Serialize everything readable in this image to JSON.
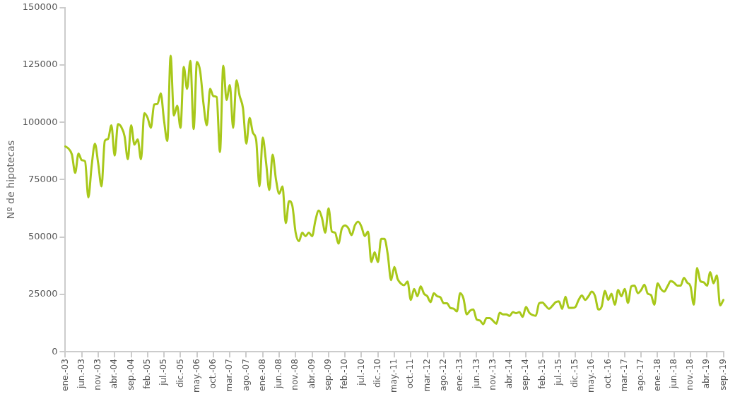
{
  "chart_data": {
    "type": "line",
    "ylabel": "Nº de hipotecas",
    "categories": [
      "ene.-03",
      null,
      null,
      null,
      null,
      "jun.-03",
      null,
      null,
      null,
      null,
      "nov.-03",
      null,
      null,
      null,
      null,
      "abr.-04",
      null,
      null,
      null,
      null,
      "sep.-04",
      null,
      null,
      null,
      null,
      "feb.-05",
      null,
      null,
      null,
      null,
      "jul.-05",
      null,
      null,
      null,
      null,
      "dic.-05",
      null,
      null,
      null,
      null,
      "may.-06",
      null,
      null,
      null,
      null,
      "oct.-06",
      null,
      null,
      null,
      null,
      "mar.-07",
      null,
      null,
      null,
      null,
      "ago.-07",
      null,
      null,
      null,
      null,
      "ene.-08",
      null,
      null,
      null,
      null,
      "jun.-08",
      null,
      null,
      null,
      null,
      "nov.-08",
      null,
      null,
      null,
      null,
      "abr.-09",
      null,
      null,
      null,
      null,
      "sep.-09",
      null,
      null,
      null,
      null,
      "feb.-10",
      null,
      null,
      null,
      null,
      "jul.-10",
      null,
      null,
      null,
      null,
      "dic.-10",
      null,
      null,
      null,
      null,
      "may.-11",
      null,
      null,
      null,
      null,
      "oct.-11",
      null,
      null,
      null,
      null,
      "mar.-12",
      null,
      null,
      null,
      null,
      "ago.-12",
      null,
      null,
      null,
      null,
      "ene.-13",
      null,
      null,
      null,
      null,
      "jun.-13",
      null,
      null,
      null,
      null,
      "nov.-13",
      null,
      null,
      null,
      null,
      "abr.-14",
      null,
      null,
      null,
      null,
      "sep.-14",
      null,
      null,
      null,
      null,
      "feb.-15",
      null,
      null,
      null,
      null,
      "jul.-15",
      null,
      null,
      null,
      null,
      "dic.-15",
      null,
      null,
      null,
      null,
      "may.-16",
      null,
      null,
      null,
      null,
      "oct.-16",
      null,
      null,
      null,
      null,
      "mar.-17",
      null,
      null,
      null,
      null,
      "ago.-17",
      null,
      null,
      null,
      null,
      "ene.-18",
      null,
      null,
      null,
      null,
      "jun.-18",
      null,
      null,
      null,
      null,
      "nov.-18",
      null,
      null,
      null,
      null,
      "abr.-19",
      null,
      null,
      null,
      null,
      "sep.-19"
    ],
    "series": [
      {
        "color": "#a8c81a",
        "values": [
          89500,
          88500,
          86000,
          78000,
          86400,
          83500,
          83000,
          67300,
          81000,
          90700,
          82000,
          72100,
          91900,
          92800,
          98700,
          85500,
          99200,
          98000,
          94000,
          83900,
          98700,
          90300,
          92500,
          83900,
          104000,
          102000,
          97600,
          107800,
          108000,
          112600,
          100800,
          91900,
          129000,
          103000,
          107200,
          97600,
          124200,
          114600,
          126800,
          97100,
          126300,
          122100,
          108000,
          98700,
          114600,
          111400,
          111000,
          87100,
          124700,
          109800,
          116200,
          97600,
          118300,
          111400,
          106100,
          90700,
          101900,
          95500,
          92300,
          72100,
          93400,
          82700,
          70500,
          85900,
          75300,
          68900,
          72100,
          56100,
          65700,
          63600,
          51900,
          48200,
          51900,
          50400,
          51900,
          50400,
          57200,
          61500,
          58300,
          51900,
          62500,
          52400,
          51900,
          47100,
          53500,
          55100,
          53900,
          50800,
          55100,
          56700,
          54500,
          50400,
          52400,
          39100,
          43400,
          39100,
          49200,
          49200,
          42300,
          31200,
          37000,
          31700,
          29700,
          29000,
          30600,
          22600,
          27400,
          24200,
          28500,
          25300,
          24200,
          21600,
          25500,
          24200,
          23700,
          21100,
          21100,
          19100,
          18800,
          17600,
          25500,
          23200,
          16300,
          17900,
          18400,
          14100,
          13600,
          12000,
          14700,
          14700,
          13500,
          12200,
          17000,
          16300,
          16300,
          15600,
          17300,
          16800,
          17300,
          15200,
          19500,
          17000,
          16000,
          15700,
          21100,
          21400,
          20000,
          18700,
          20000,
          21600,
          22000,
          18700,
          24000,
          19100,
          19100,
          19500,
          22600,
          24500,
          22600,
          24200,
          26200,
          24200,
          18400,
          19700,
          26500,
          22600,
          25300,
          20500,
          26900,
          24200,
          27400,
          21300,
          28500,
          28800,
          25500,
          26900,
          29200,
          25300,
          24700,
          20500,
          29800,
          27400,
          26200,
          28500,
          30800,
          30100,
          28800,
          28800,
          32200,
          30100,
          28500,
          20500,
          36500,
          30800,
          30300,
          28800,
          34700,
          29800,
          33300,
          20200,
          22600
        ]
      }
    ],
    "ylim": [
      0,
      150000
    ],
    "yticks": [
      0,
      25000,
      50000,
      75000,
      100000,
      125000,
      150000
    ],
    "grid": false,
    "legend": false,
    "marker": "none",
    "line_style": "solid"
  }
}
